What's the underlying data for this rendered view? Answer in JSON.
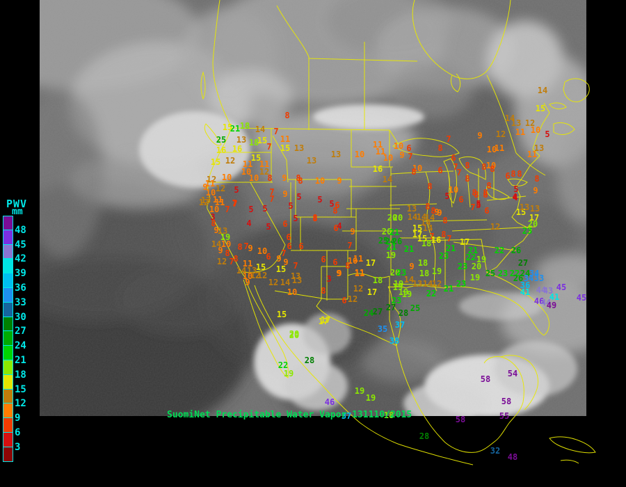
{
  "title": "SuomiNet Precipitable Water Vapor map",
  "caption": {
    "text": "SuomiNet Precipitable Water Vapor 131110/2015",
    "color": "#00DC55"
  },
  "legend": {
    "title": "PWV",
    "unit": "mm",
    "label_color": "#00E8E8",
    "tick_labels": [
      "48",
      "45",
      "42",
      "39",
      "36",
      "33",
      "30",
      "27",
      "24",
      "21",
      "18",
      "15",
      "12",
      "9",
      "6",
      "3"
    ],
    "colors_top_to_bottom": [
      "#7A0D96",
      "#7B2FE0",
      "#8975D2",
      "#00E5E5",
      "#00BFF0",
      "#1E90F0",
      "#15659E",
      "#008000",
      "#00AA00",
      "#00D400",
      "#8CE800",
      "#E6E600",
      "#C07D0A",
      "#FF7D00",
      "#F03C00",
      "#D51010",
      "#8C0505"
    ]
  },
  "map": {
    "boundary_color": "#E8E800",
    "imagery_base": "#6F6F6F",
    "background": "#000000"
  },
  "stations_xyv": [
    [
      327,
      183,
      15
    ],
    [
      338,
      185,
      21
    ],
    [
      352,
      181,
      18
    ],
    [
      374,
      186,
      14
    ],
    [
      397,
      189,
      7
    ],
    [
      318,
      201,
      25
    ],
    [
      347,
      201,
      13
    ],
    [
      365,
      205,
      18
    ],
    [
      377,
      202,
      15
    ],
    [
      387,
      211,
      7
    ],
    [
      318,
      216,
      16
    ],
    [
      341,
      214,
      16
    ],
    [
      310,
      233,
      15
    ],
    [
      331,
      231,
      12
    ],
    [
      368,
      227,
      15
    ],
    [
      356,
      236,
      11
    ],
    [
      380,
      236,
      11
    ],
    [
      410,
      200,
      11
    ],
    [
      410,
      213,
      15
    ],
    [
      430,
      213,
      13
    ],
    [
      448,
      231,
      13
    ],
    [
      413,
      166,
      8
    ],
    [
      354,
      247,
      10
    ],
    [
      380,
      247,
      12
    ],
    [
      326,
      255,
      10
    ],
    [
      365,
      256,
      10
    ],
    [
      388,
      256,
      8
    ],
    [
      409,
      256,
      9
    ],
    [
      429,
      256,
      8
    ],
    [
      304,
      258,
      12
    ],
    [
      302,
      264,
      11
    ],
    [
      295,
      269,
      9
    ],
    [
      303,
      277,
      10
    ],
    [
      317,
      271,
      12
    ],
    [
      340,
      273,
      5
    ],
    [
      391,
      276,
      7
    ],
    [
      410,
      279,
      9
    ],
    [
      430,
      283,
      5
    ],
    [
      296,
      288,
      13
    ],
    [
      313,
      287,
      11
    ],
    [
      391,
      286,
      7
    ],
    [
      293,
      291,
      12
    ],
    [
      316,
      291,
      11
    ],
    [
      338,
      293,
      7
    ],
    [
      308,
      301,
      10
    ],
    [
      327,
      301,
      7
    ],
    [
      306,
      312,
      3
    ],
    [
      307,
      321,
      8
    ],
    [
      311,
      331,
      9
    ],
    [
      320,
      332,
      13
    ],
    [
      324,
      341,
      19
    ],
    [
      311,
      351,
      14
    ],
    [
      325,
      351,
      10
    ],
    [
      317,
      360,
      9
    ],
    [
      327,
      364,
      8
    ],
    [
      319,
      376,
      12
    ],
    [
      333,
      376,
      7
    ],
    [
      339,
      372,
      8
    ],
    [
      356,
      379,
      11
    ],
    [
      347,
      389,
      14
    ],
    [
      362,
      389,
      13
    ],
    [
      375,
      384,
      15
    ],
    [
      356,
      397,
      10
    ],
    [
      367,
      396,
      12
    ],
    [
      377,
      396,
      12
    ],
    [
      356,
      406,
      9
    ],
    [
      361,
      301,
      5
    ],
    [
      381,
      300,
      5
    ],
    [
      358,
      321,
      4
    ],
    [
      386,
      326,
      5
    ],
    [
      337,
      292,
      7
    ],
    [
      418,
      296,
      5
    ],
    [
      425,
      314,
      5
    ],
    [
      410,
      322,
      6
    ],
    [
      453,
      314,
      8
    ],
    [
      415,
      341,
      6
    ],
    [
      416,
      354,
      6
    ],
    [
      433,
      354,
      6
    ],
    [
      408,
      364,
      7
    ],
    [
      345,
      355,
      8
    ],
    [
      354,
      354,
      7
    ],
    [
      360,
      357,
      9
    ],
    [
      377,
      361,
      10
    ],
    [
      386,
      369,
      6
    ],
    [
      401,
      372,
      9
    ],
    [
      411,
      377,
      9
    ],
    [
      425,
      382,
      7
    ],
    [
      404,
      387,
      15
    ],
    [
      425,
      397,
      13
    ],
    [
      393,
      406,
      12
    ],
    [
      410,
      406,
      14
    ],
    [
      465,
      373,
      6
    ],
    [
      482,
      377,
      6
    ],
    [
      500,
      382,
      8
    ],
    [
      488,
      393,
      9
    ],
    [
      473,
      401,
      3
    ],
    [
      488,
      325,
      4
    ],
    [
      483,
      328,
      6
    ],
    [
      507,
      333,
      9
    ],
    [
      503,
      353,
      7
    ],
    [
      515,
      372,
      11
    ],
    [
      507,
      375,
      10
    ],
    [
      517,
      392,
      11
    ],
    [
      533,
      378,
      17
    ],
    [
      453,
      313,
      8
    ],
    [
      460,
      287,
      5
    ],
    [
      477,
      293,
      5
    ],
    [
      485,
      295,
      6
    ],
    [
      482,
      303,
      8
    ],
    [
      432,
      260,
      8
    ],
    [
      460,
      260,
      10
    ],
    [
      488,
      260,
      9
    ],
    [
      483,
      222,
      13
    ],
    [
      517,
      222,
      10
    ],
    [
      543,
      208,
      11
    ],
    [
      547,
      218,
      11
    ],
    [
      573,
      210,
      10
    ],
    [
      588,
      213,
      6
    ],
    [
      558,
      227,
      10
    ],
    [
      578,
      223,
      9
    ],
    [
      590,
      225,
      7
    ],
    [
      543,
      243,
      16
    ],
    [
      600,
      242,
      10
    ],
    [
      595,
      247,
      8
    ],
    [
      557,
      258,
      14
    ],
    [
      618,
      268,
      8
    ],
    [
      645,
      200,
      7
    ],
    [
      633,
      213,
      8
    ],
    [
      652,
      227,
      6
    ],
    [
      633,
      245,
      6
    ],
    [
      655,
      240,
      7
    ],
    [
      672,
      238,
      8
    ],
    [
      696,
      240,
      8
    ],
    [
      706,
      238,
      10
    ],
    [
      660,
      248,
      7
    ],
    [
      672,
      257,
      8
    ],
    [
      703,
      267,
      8
    ],
    [
      652,
      273,
      10
    ],
    [
      643,
      282,
      5
    ],
    [
      663,
      287,
      6
    ],
    [
      682,
      277,
      8
    ],
    [
      698,
      277,
      8
    ],
    [
      680,
      298,
      7
    ],
    [
      688,
      295,
      5
    ],
    [
      700,
      303,
      6
    ],
    [
      628,
      305,
      9
    ],
    [
      615,
      297,
      8
    ],
    [
      623,
      303,
      8
    ],
    [
      632,
      306,
      9
    ],
    [
      592,
      300,
      13
    ],
    [
      690,
      195,
      9
    ],
    [
      720,
      193,
      12
    ],
    [
      733,
      170,
      14
    ],
    [
      742,
      177,
      13
    ],
    [
      762,
      177,
      12
    ],
    [
      770,
      187,
      10
    ],
    [
      748,
      190,
      11
    ],
    [
      780,
      130,
      14
    ],
    [
      777,
      156,
      15
    ],
    [
      787,
      193,
      5
    ],
    [
      707,
      215,
      10
    ],
    [
      718,
      213,
      11
    ],
    [
      775,
      213,
      13
    ],
    [
      765,
      222,
      11
    ],
    [
      708,
      243,
      8
    ],
    [
      730,
      253,
      6
    ],
    [
      738,
      250,
      8
    ],
    [
      747,
      250,
      8
    ],
    [
      772,
      257,
      8
    ],
    [
      742,
      272,
      5
    ],
    [
      741,
      284,
      4
    ],
    [
      770,
      274,
      9
    ],
    [
      685,
      280,
      8
    ],
    [
      698,
      280,
      8
    ],
    [
      688,
      293,
      5
    ],
    [
      593,
      312,
      14
    ],
    [
      606,
      312,
      14
    ],
    [
      618,
      313,
      14
    ],
    [
      612,
      320,
      14
    ],
    [
      640,
      317,
      8
    ],
    [
      600,
      328,
      15
    ],
    [
      615,
      328,
      14
    ],
    [
      600,
      337,
      17
    ],
    [
      607,
      343,
      15
    ],
    [
      621,
      340,
      7
    ],
    [
      627,
      345,
      16
    ],
    [
      613,
      350,
      18
    ],
    [
      638,
      337,
      8
    ],
    [
      646,
      343,
      7
    ],
    [
      564,
      313,
      20
    ],
    [
      572,
      313,
      20
    ],
    [
      556,
      333,
      20
    ],
    [
      567,
      334,
      21
    ],
    [
      551,
      346,
      25
    ],
    [
      561,
      347,
      24
    ],
    [
      571,
      347,
      26
    ],
    [
      563,
      355,
      21
    ],
    [
      562,
      367,
      19
    ],
    [
      588,
      358,
      21
    ],
    [
      592,
      383,
      9
    ],
    [
      608,
      378,
      18
    ],
    [
      610,
      393,
      18
    ],
    [
      628,
      390,
      19
    ],
    [
      568,
      392,
      20
    ],
    [
      577,
      392,
      23
    ],
    [
      588,
      402,
      14
    ],
    [
      600,
      408,
      13
    ],
    [
      615,
      408,
      14
    ],
    [
      628,
      408,
      12
    ],
    [
      645,
      415,
      21
    ],
    [
      620,
      422,
      22
    ],
    [
      580,
      420,
      19
    ],
    [
      573,
      408,
      19
    ],
    [
      648,
      357,
      21
    ],
    [
      638,
      368,
      23
    ],
    [
      665,
      383,
      23
    ],
    [
      685,
      383,
      20
    ],
    [
      680,
      360,
      21
    ],
    [
      677,
      370,
      22
    ],
    [
      692,
      373,
      19
    ],
    [
      668,
      348,
      17
    ],
    [
      718,
      360,
      22
    ],
    [
      742,
      360,
      26
    ],
    [
      752,
      378,
      27
    ],
    [
      683,
      399,
      19
    ],
    [
      705,
      393,
      25
    ],
    [
      723,
      393,
      23
    ],
    [
      740,
      393,
      22
    ],
    [
      755,
      393,
      24
    ],
    [
      768,
      393,
      34
    ],
    [
      760,
      400,
      34
    ],
    [
      775,
      400,
      33
    ],
    [
      745,
      400,
      26
    ],
    [
      755,
      410,
      36
    ],
    [
      755,
      420,
      41
    ],
    [
      778,
      417,
      44
    ],
    [
      788,
      418,
      43
    ],
    [
      807,
      413,
      45
    ],
    [
      797,
      427,
      41
    ],
    [
      836,
      428,
      45
    ],
    [
      775,
      433,
      46
    ],
    [
      785,
      435,
      44
    ],
    [
      793,
      439,
      49
    ],
    [
      712,
      326,
      12
    ],
    [
      749,
      305,
      15
    ],
    [
      754,
      298,
      13
    ],
    [
      769,
      300,
      13
    ],
    [
      768,
      313,
      17
    ],
    [
      766,
      322,
      20
    ],
    [
      758,
      332,
      23
    ],
    [
      740,
      283,
      4
    ],
    [
      663,
      408,
      23
    ],
    [
      427,
      403,
      13
    ],
    [
      420,
      420,
      10
    ],
    [
      487,
      393,
      9
    ],
    [
      465,
      418,
      8
    ],
    [
      517,
      393,
      11
    ],
    [
      515,
      415,
      12
    ],
    [
      495,
      432,
      6
    ],
    [
      507,
      430,
      12
    ],
    [
      543,
      403,
      18
    ],
    [
      535,
      420,
      17
    ],
    [
      572,
      413,
      19
    ],
    [
      585,
      423,
      19
    ],
    [
      570,
      432,
      23
    ],
    [
      562,
      442,
      27
    ],
    [
      530,
      450,
      24
    ],
    [
      543,
      448,
      27
    ],
    [
      580,
      450,
      28
    ],
    [
      597,
      443,
      25
    ],
    [
      550,
      473,
      35
    ],
    [
      575,
      467,
      37
    ],
    [
      567,
      490,
      38
    ],
    [
      468,
      460,
      17
    ],
    [
      423,
      480,
      20
    ],
    [
      405,
      452,
      15
    ],
    [
      423,
      482,
      20
    ],
    [
      465,
      462,
      17
    ],
    [
      445,
      518,
      28
    ],
    [
      407,
      525,
      22
    ],
    [
      415,
      537,
      19
    ],
    [
      517,
      562,
      19
    ],
    [
      533,
      572,
      19
    ],
    [
      474,
      578,
      46
    ],
    [
      498,
      598,
      37
    ],
    [
      559,
      597,
      18
    ],
    [
      610,
      627,
      28
    ],
    [
      662,
      603,
      58
    ],
    [
      698,
      545,
      58
    ],
    [
      737,
      537,
      54
    ],
    [
      728,
      577,
      58
    ],
    [
      725,
      598,
      55
    ],
    [
      712,
      648,
      32
    ],
    [
      737,
      657,
      48
    ]
  ]
}
